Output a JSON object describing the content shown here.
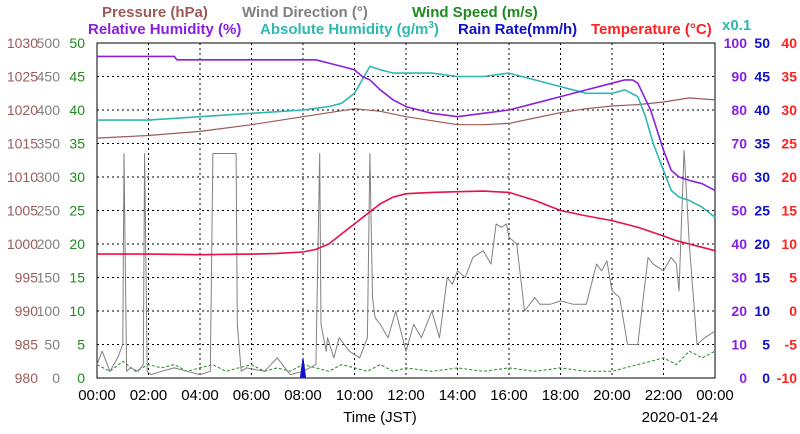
{
  "colors": {
    "pressure": "#9c5a5a",
    "wind_dir": "#808080",
    "wind_speed": "#1f8a1f",
    "humidity": "#8a1fe0",
    "abs_humidity": "#2fb8b0",
    "rain": "#1010c8",
    "temperature": "#ff2020",
    "temperature_line": "#e8104a",
    "grid": "#000000",
    "background": "#ffffff"
  },
  "legend": {
    "pressure": "Pressure (hPa)",
    "wind_dir": "Wind Direction (°)",
    "wind_speed": "Wind Speed (m/s)",
    "humidity": "Relative Humidity (%)",
    "abs_humidity_prefix": "Absolute Humidity (g/m",
    "abs_humidity_sup": "3",
    "abs_humidity_suffix": ")",
    "rain": "Rain Rate(mm/h)",
    "temperature": "Temperature (°C)",
    "rain_scale": "x0.1"
  },
  "axis_ticks": {
    "pressure": [
      "1030",
      "1025",
      "1020",
      "1015",
      "1010",
      "1005",
      "1000",
      "995",
      "990",
      "985",
      "980"
    ],
    "wind_dir": [
      "500",
      "450",
      "400",
      "350",
      "300",
      "250",
      "200",
      "150",
      "100",
      "50",
      "0"
    ],
    "wind_speed": [
      "50",
      "45",
      "40",
      "35",
      "30",
      "25",
      "20",
      "15",
      "10",
      "5",
      "0"
    ],
    "humidity": [
      "100",
      "90",
      "80",
      "70",
      "60",
      "50",
      "40",
      "30",
      "20",
      "10",
      "0"
    ],
    "rain": [
      "50",
      "45",
      "40",
      "35",
      "30",
      "25",
      "20",
      "15",
      "10",
      "5",
      "0"
    ],
    "temperature": [
      "40",
      "35",
      "30",
      "25",
      "20",
      "15",
      "10",
      "5",
      "0",
      "-5",
      "-10"
    ]
  },
  "x_ticks": [
    "00:00",
    "02:00",
    "04:00",
    "06:00",
    "08:00",
    "10:00",
    "12:00",
    "14:00",
    "16:00",
    "18:00",
    "20:00",
    "22:00",
    "00:00"
  ],
  "x_label": "Time (JST)",
  "date_label": "2020-01-24",
  "chart_data": {
    "type": "line",
    "x_unit": "hour",
    "x_range": [
      0,
      24
    ],
    "grid": true,
    "series": [
      {
        "name": "Pressure (hPa)",
        "key": "pressure",
        "axis": "pressure",
        "ylim": [
          980,
          1030
        ],
        "x": [
          0,
          2,
          4,
          6,
          8,
          9,
          10,
          11,
          12,
          13,
          14,
          15,
          16,
          17,
          18,
          19,
          20,
          21,
          22,
          23,
          24
        ],
        "values": [
          1015.8,
          1016.2,
          1016.8,
          1017.8,
          1019.0,
          1019.6,
          1020.2,
          1019.8,
          1019.0,
          1018.4,
          1017.8,
          1017.8,
          1018.0,
          1018.8,
          1019.6,
          1020.2,
          1020.6,
          1020.8,
          1021.2,
          1021.8,
          1021.5
        ]
      },
      {
        "name": "Wind Direction (°)",
        "key": "wind_dir",
        "axis": "wind_dir",
        "ylim": [
          0,
          500
        ],
        "x": [
          0,
          0.2,
          0.5,
          0.8,
          1.0,
          1.05,
          1.15,
          1.3,
          1.6,
          1.8,
          1.85,
          1.95,
          2.1,
          2.5,
          3.0,
          3.5,
          4.0,
          4.4,
          4.5,
          4.55,
          5.4,
          5.45,
          5.6,
          5.8,
          6.5,
          7.0,
          7.5,
          8.0,
          8.5,
          8.65,
          8.7,
          8.9,
          8.95,
          9.2,
          9.4,
          9.8,
          10.2,
          10.5,
          10.6,
          10.7,
          10.8,
          11.0,
          11.3,
          11.6,
          12.0,
          12.3,
          12.6,
          13.0,
          13.3,
          13.6,
          13.8,
          14.0,
          14.3,
          14.6,
          15.0,
          15.3,
          15.5,
          15.7,
          15.9,
          16.0,
          16.3,
          16.6,
          17.0,
          17.2,
          17.6,
          18.0,
          18.5,
          19.0,
          19.4,
          19.6,
          19.8,
          20.0,
          20.3,
          20.6,
          21.0,
          21.4,
          21.6,
          22.0,
          22.3,
          22.5,
          22.6,
          22.8,
          23.0,
          23.3,
          23.6,
          24.0
        ],
        "values": [
          20,
          40,
          10,
          30,
          50,
          335,
          10,
          15,
          10,
          20,
          335,
          10,
          5,
          10,
          15,
          10,
          5,
          10,
          335,
          335,
          335,
          80,
          10,
          15,
          10,
          30,
          5,
          10,
          20,
          335,
          80,
          40,
          60,
          30,
          60,
          40,
          30,
          60,
          335,
          120,
          90,
          80,
          60,
          100,
          40,
          80,
          60,
          100,
          60,
          150,
          140,
          160,
          150,
          180,
          190,
          170,
          230,
          225,
          230,
          210,
          200,
          100,
          120,
          110,
          110,
          115,
          110,
          110,
          170,
          160,
          175,
          130,
          120,
          50,
          50,
          180,
          170,
          160,
          180,
          170,
          130,
          340,
          200,
          50,
          60,
          70
        ]
      },
      {
        "name": "Wind Speed (m/s)",
        "key": "wind_speed",
        "axis": "wind_speed",
        "ylim": [
          0,
          50
        ],
        "x": [
          0,
          0.5,
          1,
          1.5,
          2,
          2.5,
          3,
          3.5,
          4,
          4.5,
          5,
          5.5,
          6,
          6.5,
          7,
          7.5,
          8,
          8.5,
          9,
          9.5,
          10,
          10.5,
          11,
          11.5,
          12,
          13,
          14,
          15,
          16,
          17,
          18,
          19,
          20,
          20.5,
          21,
          21.5,
          22,
          22.5,
          23,
          23.5,
          24
        ],
        "values": [
          2,
          1,
          2.5,
          1,
          2,
          1.5,
          2,
          1,
          1.5,
          2,
          1,
          1.5,
          2,
          1,
          1.5,
          1,
          2,
          1.5,
          1,
          2,
          1.5,
          1,
          2,
          1,
          1.5,
          1,
          1.5,
          1,
          1.5,
          1,
          1.5,
          1,
          1,
          1.5,
          2,
          2.5,
          3,
          2,
          4,
          3,
          4
        ]
      },
      {
        "name": "Relative Humidity (%)",
        "key": "humidity",
        "axis": "humidity",
        "ylim": [
          0,
          100
        ],
        "x": [
          0,
          3.0,
          3.1,
          8.5,
          9.0,
          9.5,
          10.0,
          10.3,
          10.6,
          11.0,
          11.5,
          12.0,
          13.0,
          14.0,
          15.0,
          16.0,
          17.0,
          18.0,
          19.0,
          20.0,
          20.5,
          20.8,
          21.0,
          21.5,
          22.0,
          22.3,
          22.6,
          23.0,
          23.5,
          24.0
        ],
        "values": [
          96,
          96,
          95,
          95,
          94,
          93,
          92,
          90,
          89,
          86,
          83,
          81,
          79,
          78,
          79,
          80,
          82,
          84,
          86,
          88,
          89,
          89,
          88,
          80,
          68,
          62,
          60,
          59,
          58,
          56
        ]
      },
      {
        "name": "Absolute Humidity (g/m³)",
        "key": "abs_humidity",
        "axis": "humidity",
        "ylim": [
          0,
          100
        ],
        "x": [
          0,
          2,
          4,
          6,
          8,
          9,
          9.5,
          10.0,
          10.3,
          10.6,
          11.0,
          11.5,
          12.0,
          13.0,
          14.0,
          15.0,
          16.0,
          17.0,
          18.0,
          19.0,
          20.0,
          20.5,
          21.0,
          21.3,
          21.6,
          22.0,
          22.3,
          22.6,
          23.0,
          23.5,
          24.0
        ],
        "values": [
          77,
          77,
          78,
          79,
          80,
          81,
          82,
          85,
          89,
          93,
          92,
          91,
          91,
          91,
          90,
          90,
          91,
          89,
          87,
          85,
          85,
          86,
          84,
          78,
          70,
          62,
          56,
          54,
          53,
          51,
          48
        ]
      },
      {
        "name": "Rain Rate(mm/h)",
        "key": "rain",
        "axis": "rain",
        "ylim": [
          0,
          50
        ],
        "x": [
          7.9,
          7.95,
          8.0,
          8.05,
          8.1
        ],
        "values": [
          0,
          1.5,
          3,
          1.5,
          0
        ]
      },
      {
        "name": "Temperature (°C)",
        "key": "temperature",
        "axis": "temperature",
        "ylim": [
          -10,
          40
        ],
        "x": [
          0,
          2,
          4,
          6,
          7,
          8,
          8.5,
          9,
          9.5,
          10,
          10.5,
          11,
          11.5,
          12,
          13,
          14,
          15,
          16,
          17,
          18,
          19,
          20,
          21,
          22,
          22.5,
          23,
          23.5,
          24
        ],
        "values": [
          8.5,
          8.5,
          8.4,
          8.5,
          8.6,
          8.8,
          9.2,
          10.0,
          11.5,
          13.0,
          14.5,
          16.0,
          17.0,
          17.5,
          17.7,
          17.8,
          17.9,
          17.7,
          16.5,
          15.0,
          14.2,
          13.5,
          12.5,
          11.2,
          10.5,
          10.0,
          9.5,
          9.0
        ]
      }
    ]
  }
}
